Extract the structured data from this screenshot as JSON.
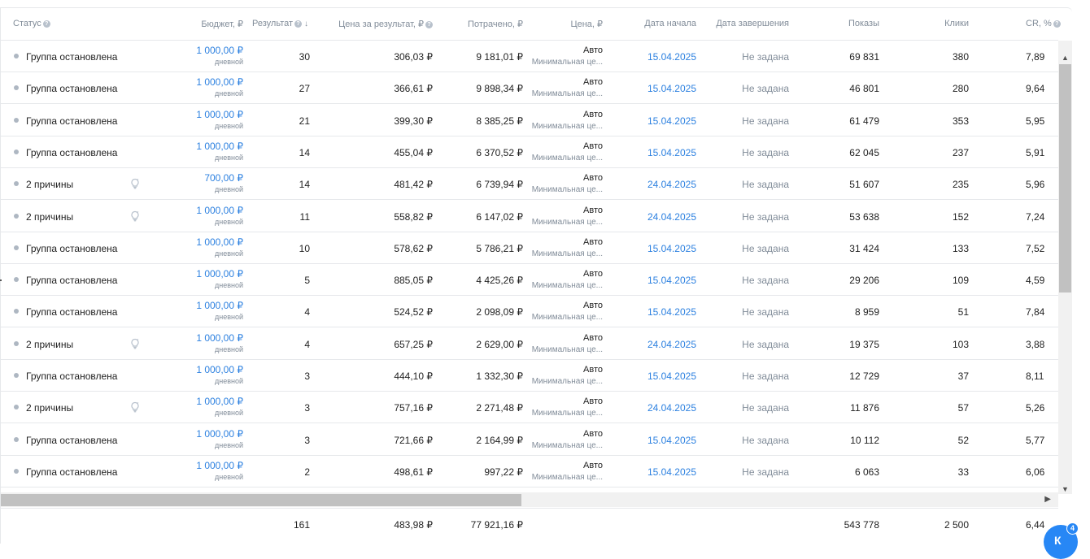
{
  "columns": {
    "status": "Статус",
    "budget": "Бюджет, ₽",
    "result": "Результат",
    "cost_per_result": "Цена за результат, ₽",
    "spent": "Потрачено, ₽",
    "price": "Цена, ₽",
    "start_date": "Дата начала",
    "end_date": "Дата завершения",
    "shows": "Показы",
    "clicks": "Клики",
    "cr": "CR, %"
  },
  "budget_sub": "дневной",
  "price_sub": "Минимальная це...",
  "rows": [
    {
      "status": "Группа остановлена",
      "bulb": false,
      "budget": "1 000,00 ₽",
      "result": "30",
      "cpr": "306,03 ₽",
      "spent": "9 181,01 ₽",
      "price": "Авто",
      "start": "15.04.2025",
      "end": "Не задана",
      "shows": "69 831",
      "clicks": "380",
      "cr": "7,89"
    },
    {
      "status": "Группа остановлена",
      "bulb": false,
      "budget": "1 000,00 ₽",
      "result": "27",
      "cpr": "366,61 ₽",
      "spent": "9 898,34 ₽",
      "price": "Авто",
      "start": "15.04.2025",
      "end": "Не задана",
      "shows": "46 801",
      "clicks": "280",
      "cr": "9,64"
    },
    {
      "status": "Группа остановлена",
      "bulb": false,
      "budget": "1 000,00 ₽",
      "result": "21",
      "cpr": "399,30 ₽",
      "spent": "8 385,25 ₽",
      "price": "Авто",
      "start": "15.04.2025",
      "end": "Не задана",
      "shows": "61 479",
      "clicks": "353",
      "cr": "5,95"
    },
    {
      "status": "Группа остановлена",
      "bulb": false,
      "budget": "1 000,00 ₽",
      "result": "14",
      "cpr": "455,04 ₽",
      "spent": "6 370,52 ₽",
      "price": "Авто",
      "start": "15.04.2025",
      "end": "Не задана",
      "shows": "62 045",
      "clicks": "237",
      "cr": "5,91"
    },
    {
      "status": "2 причины",
      "bulb": true,
      "budget": "700,00 ₽",
      "result": "14",
      "cpr": "481,42 ₽",
      "spent": "6 739,94 ₽",
      "price": "Авто",
      "start": "24.04.2025",
      "end": "Не задана",
      "shows": "51 607",
      "clicks": "235",
      "cr": "5,96"
    },
    {
      "status": "2 причины",
      "bulb": true,
      "budget": "1 000,00 ₽",
      "result": "11",
      "cpr": "558,82 ₽",
      "spent": "6 147,02 ₽",
      "price": "Авто",
      "start": "24.04.2025",
      "end": "Не задана",
      "shows": "53 638",
      "clicks": "152",
      "cr": "7,24"
    },
    {
      "status": "Группа остановлена",
      "bulb": false,
      "budget": "1 000,00 ₽",
      "result": "10",
      "cpr": "578,62 ₽",
      "spent": "5 786,21 ₽",
      "price": "Авто",
      "start": "15.04.2025",
      "end": "Не задана",
      "shows": "31 424",
      "clicks": "133",
      "cr": "7,52"
    },
    {
      "status": "Группа остановлена",
      "bulb": false,
      "budget": "1 000,00 ₽",
      "result": "5",
      "cpr": "885,05 ₽",
      "spent": "4 425,26 ₽",
      "price": "Авто",
      "start": "15.04.2025",
      "end": "Не задана",
      "shows": "29 206",
      "clicks": "109",
      "cr": "4,59"
    },
    {
      "status": "Группа остановлена",
      "bulb": false,
      "budget": "1 000,00 ₽",
      "result": "4",
      "cpr": "524,52 ₽",
      "spent": "2 098,09 ₽",
      "price": "Авто",
      "start": "15.04.2025",
      "end": "Не задана",
      "shows": "8 959",
      "clicks": "51",
      "cr": "7,84"
    },
    {
      "status": "2 причины",
      "bulb": true,
      "budget": "1 000,00 ₽",
      "result": "4",
      "cpr": "657,25 ₽",
      "spent": "2 629,00 ₽",
      "price": "Авто",
      "start": "24.04.2025",
      "end": "Не задана",
      "shows": "19 375",
      "clicks": "103",
      "cr": "3,88"
    },
    {
      "status": "Группа остановлена",
      "bulb": false,
      "budget": "1 000,00 ₽",
      "result": "3",
      "cpr": "444,10 ₽",
      "spent": "1 332,30 ₽",
      "price": "Авто",
      "start": "15.04.2025",
      "end": "Не задана",
      "shows": "12 729",
      "clicks": "37",
      "cr": "8,11"
    },
    {
      "status": "2 причины",
      "bulb": true,
      "budget": "1 000,00 ₽",
      "result": "3",
      "cpr": "757,16 ₽",
      "spent": "2 271,48 ₽",
      "price": "Авто",
      "start": "24.04.2025",
      "end": "Не задана",
      "shows": "11 876",
      "clicks": "57",
      "cr": "5,26"
    },
    {
      "status": "Группа остановлена",
      "bulb": false,
      "budget": "1 000,00 ₽",
      "result": "3",
      "cpr": "721,66 ₽",
      "spent": "2 164,99 ₽",
      "price": "Авто",
      "start": "15.04.2025",
      "end": "Не задана",
      "shows": "10 112",
      "clicks": "52",
      "cr": "5,77"
    },
    {
      "status": "Группа остановлена",
      "bulb": false,
      "budget": "1 000,00 ₽",
      "result": "2",
      "cpr": "498,61 ₽",
      "spent": "997,22 ₽",
      "price": "Авто",
      "start": "15.04.2025",
      "end": "Не задана",
      "shows": "6 063",
      "clicks": "33",
      "cr": "6,06"
    }
  ],
  "totals": {
    "result": "161",
    "cpr": "483,98 ₽",
    "spent": "77 921,16 ₽",
    "shows": "543 778",
    "clicks": "2 500",
    "cr": "6,44"
  },
  "widget": {
    "badge": "4",
    "letter": "К"
  },
  "icons": {
    "help": "question-circle-icon",
    "sort": "arrow-down-icon",
    "bulb": "lightbulb-icon"
  },
  "colors": {
    "link": "#2d81e0",
    "muted": "#818c99",
    "widget": "#2787f5"
  }
}
